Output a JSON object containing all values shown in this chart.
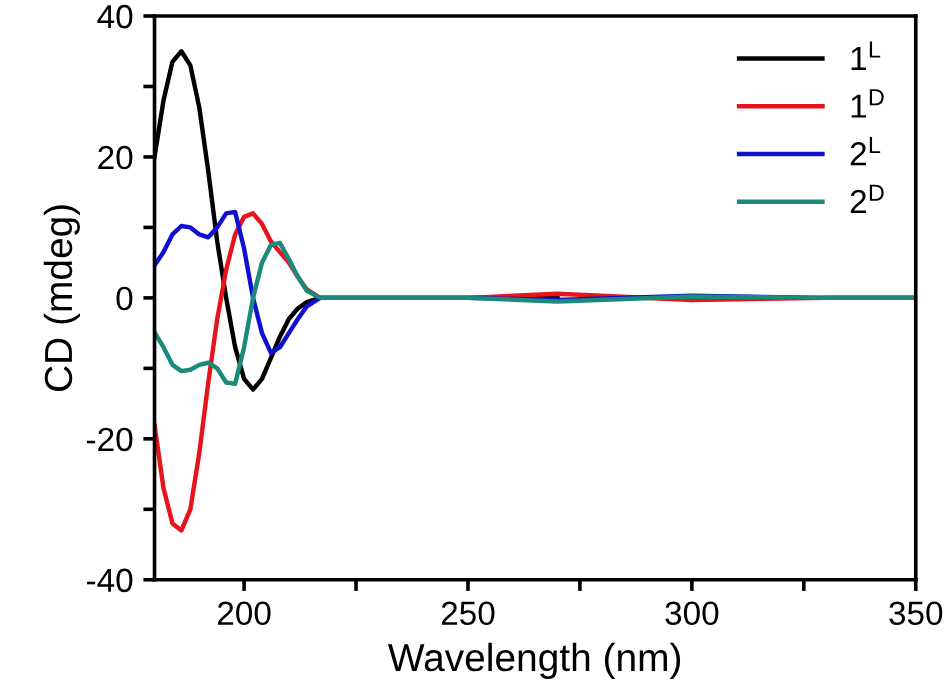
{
  "chart_data": {
    "type": "line",
    "xlabel": "Wavelength (nm)",
    "ylabel": "CD (mdeg)",
    "xlim": [
      180,
      350
    ],
    "ylim": [
      -40,
      40
    ],
    "xticks": [
      200,
      {
        "value": 225,
        "label": null
      },
      250,
      {
        "value": 275,
        "label": null
      },
      300,
      {
        "value": 325,
        "label": null
      },
      350
    ],
    "yticks": [
      -40,
      {
        "value": -30,
        "label": null
      },
      -20,
      {
        "value": -10,
        "label": null
      },
      0,
      {
        "value": 10,
        "label": null
      },
      20,
      {
        "value": 30,
        "label": null
      },
      40
    ],
    "x": [
      180,
      182,
      184,
      186,
      188,
      190,
      192,
      194,
      196,
      198,
      200,
      202,
      204,
      206,
      208,
      210,
      212,
      214,
      217,
      230,
      250,
      270,
      300,
      330,
      350
    ],
    "legend": "top right",
    "grid": false,
    "marker": "none",
    "line_style": "solid",
    "series": [
      {
        "name": "1$^{L}$",
        "color": "#000000",
        "values": [
          20,
          28,
          33.5,
          35,
          33,
          27,
          18,
          8,
          0,
          -7,
          -11.5,
          -13,
          -11.5,
          -8.5,
          -5.5,
          -3,
          -1.5,
          -0.6,
          0,
          0,
          0,
          0.3,
          null,
          0,
          0
        ]
      },
      {
        "name": "1$^{D}$",
        "color": "#e8141b",
        "values": [
          -18,
          -27,
          -32,
          -33,
          -30,
          -22,
          -12,
          -3,
          4,
          9,
          11.5,
          12,
          10.5,
          8,
          6.5,
          5,
          3,
          1.2,
          0,
          0,
          0,
          0.6,
          -0.3,
          0,
          0
        ]
      },
      {
        "name": "2$^{L}$",
        "color": "#1010d0",
        "values": [
          4.6,
          6.5,
          9,
          10.2,
          10,
          9,
          8.6,
          10,
          12,
          12.2,
          7,
          0,
          -5,
          -7.8,
          -7,
          -5,
          -3,
          -1.2,
          0,
          0,
          0,
          -0.3,
          0.3,
          0,
          0
        ]
      },
      {
        "name": "2$^{D}$",
        "color": "#1a8a7a",
        "values": [
          -4.9,
          -7,
          -9.5,
          -10.4,
          -10.2,
          -9.5,
          -9.2,
          -10,
          -12,
          -12.2,
          -7,
          0,
          5,
          7.5,
          7.8,
          5.5,
          3,
          1,
          0,
          0,
          0,
          -0.5,
          0.2,
          0,
          0
        ]
      }
    ]
  }
}
